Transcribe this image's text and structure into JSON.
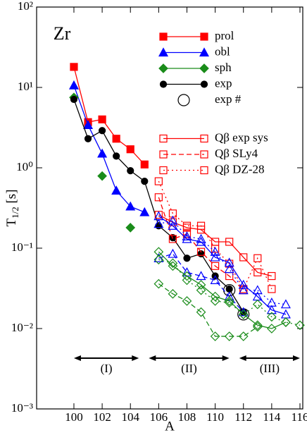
{
  "chart_data": {
    "type": "line",
    "label": "Zr",
    "xlabel": "A",
    "ylabel": {
      "main": "T",
      "sub": "1/2",
      "rest": " [s]"
    },
    "log_y": true,
    "xlim": [
      97.36,
      116.2
    ],
    "ylim": [
      0.001,
      100
    ],
    "xticks": [
      100,
      102,
      104,
      106,
      108,
      110,
      112,
      114,
      116
    ],
    "yticks": [
      {
        "value": 0.001,
        "label": "10⁻³"
      },
      {
        "value": 0.01,
        "label": "10⁻²"
      },
      {
        "value": 0.1,
        "label": "10⁻¹"
      },
      {
        "value": 1,
        "label": "10⁰"
      },
      {
        "value": 10,
        "label": "10¹"
      },
      {
        "value": 100,
        "label": "10²"
      }
    ],
    "x": [
      100,
      101,
      102,
      103,
      104,
      105,
      106,
      107,
      108,
      109,
      110,
      111,
      112,
      113,
      114,
      115,
      116
    ],
    "regions": [
      {
        "label": "(I)",
        "from": 100,
        "to": 104.6
      },
      {
        "label": "(II)",
        "from": 105.3,
        "to": 111
      },
      {
        "label": "(III)",
        "from": 111.7,
        "to": 116
      }
    ],
    "series": [
      {
        "name": "prol",
        "color": "#ff0000",
        "marker": "square",
        "filled": true,
        "dash": "solid",
        "values": [
          18,
          3.7,
          4.0,
          2.3,
          1.7,
          1.1,
          null,
          null,
          null,
          null,
          null,
          null,
          null,
          null,
          null,
          null,
          null
        ]
      },
      {
        "name": "obl",
        "color": "#0000ff",
        "marker": "triangle",
        "filled": true,
        "dash": "solid",
        "values": [
          10.6,
          3.4,
          1.5,
          0.52,
          0.33,
          0.28,
          null,
          null,
          null,
          null,
          null,
          null,
          null,
          null,
          null,
          null,
          null
        ]
      },
      {
        "name": "sph",
        "color": "#1a8c1a",
        "marker": "diamond",
        "filled": true,
        "dash": "solid",
        "values": [
          7.5,
          null,
          0.79,
          null,
          0.18,
          null,
          null,
          null,
          null,
          null,
          null,
          null,
          null,
          null,
          null,
          null,
          null
        ]
      },
      {
        "name": "exp",
        "color": "#000000",
        "marker": "circle",
        "filled": true,
        "dash": "solid",
        "values": [
          7.1,
          2.3,
          2.9,
          1.4,
          0.92,
          0.68,
          0.19,
          0.135,
          0.075,
          0.085,
          0.045,
          0.031,
          0.016,
          null,
          null,
          null,
          null
        ]
      },
      {
        "name": "exp #",
        "color": "#000000",
        "marker": "bigcircle",
        "filled": false,
        "dash": "none",
        "values": [
          null,
          null,
          null,
          null,
          null,
          null,
          null,
          null,
          null,
          null,
          null,
          0.03,
          0.015,
          null,
          null,
          null,
          null
        ]
      },
      {
        "name": "Qβ exp sys",
        "color": "#ff0000",
        "marker": "square",
        "filled": false,
        "dash": "solid",
        "values": [
          null,
          null,
          null,
          null,
          null,
          null,
          0.26,
          0.21,
          0.18,
          0.17,
          0.12,
          0.12,
          0.077,
          0.05,
          0.045,
          null,
          null
        ]
      },
      {
        "name": "Qβ SLy4",
        "color": "#ff0000",
        "marker": "square",
        "filled": false,
        "dash": "dashed",
        "values": [
          null,
          null,
          null,
          null,
          null,
          null,
          0.43,
          0.13,
          0.15,
          0.09,
          0.06,
          0.045,
          0.03,
          null,
          null,
          null,
          null
        ]
      },
      {
        "name": "Qβ DZ-28",
        "color": "#ff0000",
        "marker": "square",
        "filled": false,
        "dash": "dotted",
        "values": [
          null,
          null,
          null,
          null,
          null,
          null,
          0.68,
          0.27,
          0.19,
          0.19,
          0.098,
          0.064,
          0.031,
          0.075,
          0.031,
          null,
          null
        ]
      },
      {
        "color": "#0000ff",
        "marker": "triangle",
        "filled": false,
        "dash": "solid",
        "values": [
          null,
          null,
          null,
          null,
          null,
          null,
          0.25,
          0.19,
          0.13,
          0.12,
          0.077,
          0.066,
          0.035,
          0.025,
          0.017,
          0.015,
          null
        ]
      },
      {
        "color": "#0000ff",
        "marker": "triangle",
        "filled": false,
        "dash": "dashed",
        "values": [
          null,
          null,
          null,
          null,
          null,
          null,
          0.075,
          0.085,
          0.05,
          0.045,
          0.04,
          0.025,
          0.016,
          null,
          null,
          null,
          null
        ]
      },
      {
        "color": "#0000ff",
        "marker": "triangle",
        "filled": false,
        "dash": "dotted",
        "values": [
          null,
          null,
          null,
          null,
          null,
          null,
          0.2,
          0.22,
          0.14,
          0.13,
          0.09,
          0.055,
          0.03,
          0.03,
          0.021,
          0.02,
          null
        ]
      },
      {
        "color": "#1a8c1a",
        "marker": "diamond",
        "filled": false,
        "dash": "solid",
        "values": [
          null,
          null,
          null,
          null,
          null,
          null,
          0.09,
          0.06,
          0.045,
          0.035,
          0.025,
          0.022,
          0.015,
          0.011,
          0.01,
          0.012,
          null
        ]
      },
      {
        "color": "#1a8c1a",
        "marker": "diamond",
        "filled": false,
        "dash": "dashed",
        "values": [
          null,
          null,
          null,
          null,
          null,
          null,
          0.036,
          0.027,
          0.022,
          0.016,
          0.008,
          0.008,
          0.008,
          0.0105,
          null,
          null,
          null
        ]
      },
      {
        "color": "#1a8c1a",
        "marker": "diamond",
        "filled": false,
        "dash": "dotted",
        "values": [
          null,
          null,
          null,
          null,
          null,
          null,
          0.072,
          0.065,
          0.04,
          0.03,
          0.022,
          0.021,
          0.015,
          0.02,
          0.014,
          0.012,
          0.011
        ]
      }
    ]
  }
}
